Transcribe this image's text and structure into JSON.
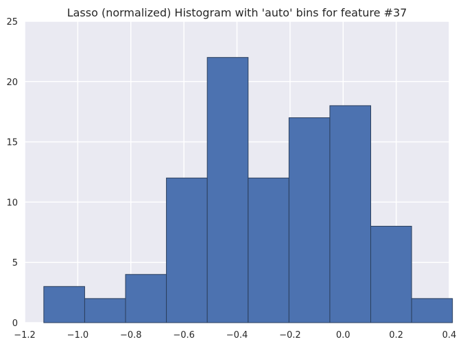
{
  "chart_data": {
    "type": "bar",
    "title": "Lasso (normalized) Histogram with 'auto' bins for feature #37",
    "xlabel": "",
    "ylabel": "",
    "xlim": [
      -1.2,
      0.4
    ],
    "ylim": [
      0,
      25
    ],
    "xticks": [
      -1.2,
      -1.0,
      -0.8,
      -0.6,
      -0.4,
      -0.2,
      0.0,
      0.2,
      0.4
    ],
    "xtick_labels": [
      "−1.2",
      "−1.0",
      "−0.8",
      "−0.6",
      "−0.4",
      "−0.2",
      "0.0",
      "0.2",
      "0.4"
    ],
    "yticks": [
      0,
      5,
      10,
      15,
      20,
      25
    ],
    "ytick_labels": [
      "0",
      "5",
      "10",
      "15",
      "20",
      "25"
    ],
    "grid": true,
    "bin_edges": [
      -1.128,
      -0.974,
      -0.82,
      -0.666,
      -0.512,
      -0.358,
      -0.204,
      -0.05,
      0.104,
      0.258,
      0.412
    ],
    "values": [
      3,
      2,
      4,
      12,
      22,
      12,
      17,
      18,
      8,
      2
    ],
    "colors": {
      "bar": "#4c72b0",
      "bar_edge": "#2b3f5c",
      "background": "#eaeaf2",
      "grid": "#ffffff"
    }
  }
}
